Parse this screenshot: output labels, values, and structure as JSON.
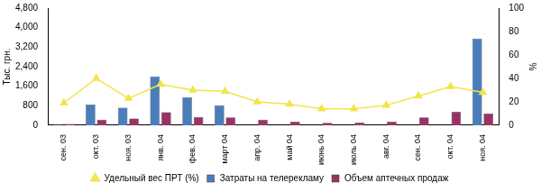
{
  "chart_data": {
    "type": "bar",
    "y_label": "Тыс. грн.",
    "y2_label": "%",
    "categories": [
      "сен. 03",
      "окт. 03",
      "ноя. 03",
      "янв. 04",
      "фев. 04",
      "март 04",
      "апр. 04",
      "май 04",
      "июнь 04",
      "июль 04",
      "авг. 04",
      "сен. 04",
      "окт. 04",
      "ноя. 04"
    ],
    "series": [
      {
        "name": "Затраты на телерекламу",
        "type": "bar",
        "color": "#4a7ebb",
        "axis": "y",
        "values": [
          30,
          850,
          720,
          2000,
          1150,
          820,
          0,
          0,
          0,
          0,
          0,
          0,
          0,
          3550
        ]
      },
      {
        "name": "Объем аптечных продаж",
        "type": "bar",
        "color": "#993366",
        "axis": "y",
        "values": [
          50,
          230,
          280,
          530,
          340,
          320,
          230,
          150,
          100,
          110,
          150,
          320,
          550,
          480
        ]
      },
      {
        "name": "Удельный вес ПРТ (%)",
        "type": "line",
        "color": "#f2e44a",
        "marker": "triangle",
        "axis": "y2",
        "values": [
          19,
          40,
          23,
          35,
          30,
          29,
          20,
          18,
          14,
          14,
          17,
          25,
          33,
          28
        ]
      }
    ],
    "ylim": [
      0,
      4800
    ],
    "yticks": [
      0,
      800,
      1600,
      2400,
      3200,
      4000,
      4800
    ],
    "y2lim": [
      0,
      100
    ],
    "y2ticks": [
      0,
      20,
      40,
      60,
      80,
      100
    ],
    "grid": false,
    "legend": "bottom"
  }
}
